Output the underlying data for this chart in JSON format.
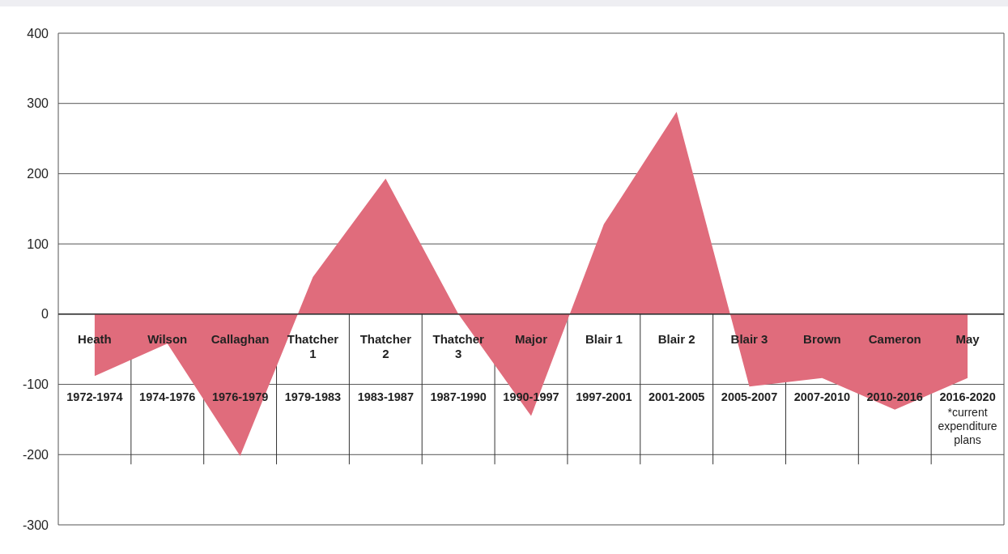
{
  "chart_data": {
    "type": "area",
    "categories": [
      "Heath\n1972-1974",
      "Wilson\n1974-1976",
      "Callaghan\n1976-1979",
      "Thatcher 1\n1979-1983",
      "Thatcher 2\n1983-1987",
      "Thatcher 3\n1987-1990",
      "Major\n1990-1997",
      "Blair 1\n1997-2001",
      "Blair 2\n2001-2005",
      "Blair 3\n2005-2007",
      "Brown\n2007-2010",
      "Cameron\n2010-2016",
      "May\n2016-2020\n*current expenditure plans"
    ],
    "series": [
      {
        "color": "#e06c7c",
        "values": [
          -88,
          -42,
          -202,
          53,
          193,
          0,
          -145,
          128,
          288,
          -103,
          -91,
          -136,
          -91
        ]
      }
    ],
    "ylim": [
      -300,
      400
    ],
    "yticks": [
      -300,
      -200,
      -100,
      0,
      100,
      200,
      300,
      400
    ],
    "grid": "y"
  }
}
